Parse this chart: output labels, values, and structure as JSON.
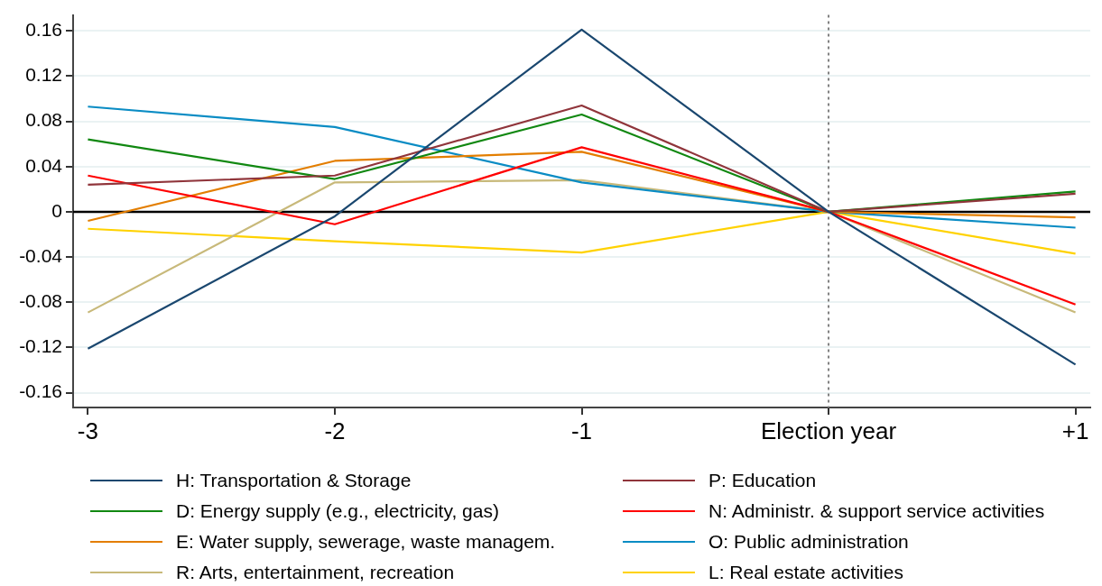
{
  "chart_data": {
    "type": "line",
    "x": [
      -3,
      -2,
      -1,
      0,
      1
    ],
    "xlim": [
      -3.06,
      1.06
    ],
    "xticks": [
      {
        "value": -3,
        "label": "-3"
      },
      {
        "value": -2,
        "label": "-2"
      },
      {
        "value": -1,
        "label": "-1"
      },
      {
        "value": 0,
        "label": "Election year"
      },
      {
        "value": 1,
        "label": "+1"
      }
    ],
    "ylim": [
      -0.173,
      0.174
    ],
    "yticks": [
      {
        "value": -0.16,
        "label": "-0.16"
      },
      {
        "value": -0.12,
        "label": "-0.12"
      },
      {
        "value": -0.08,
        "label": "-0.08"
      },
      {
        "value": -0.04,
        "label": "-0.04"
      },
      0,
      {
        "value": 0.04,
        "label": "0.04"
      },
      {
        "value": 0.08,
        "label": "0.08"
      },
      {
        "value": 0.12,
        "label": "0.12"
      },
      {
        "value": 0.16,
        "label": "0.16"
      }
    ],
    "grid": "y",
    "legend": "bottom",
    "ref_lines": [
      {
        "axis": "y",
        "value": 0,
        "color": "#000000",
        "line_style": "solid"
      },
      {
        "axis": "x",
        "value": 0,
        "color": "#808080",
        "line_style": "dotted"
      }
    ],
    "series": [
      {
        "name": "H: Transportation & Storage",
        "color": "#1a476f",
        "values": [
          -0.121,
          -0.004,
          0.161,
          0,
          -0.135
        ]
      },
      {
        "name": "P: Education",
        "color": "#90353b",
        "values": [
          0.024,
          0.032,
          0.094,
          0,
          0.016
        ]
      },
      {
        "name": "D: Energy supply (e.g., electricity, gas)",
        "color": "#118811",
        "values": [
          0.064,
          0.029,
          0.086,
          0,
          0.018
        ]
      },
      {
        "name": "N: Administr. & support service activities",
        "color": "#ff0000",
        "values": [
          0.032,
          -0.011,
          0.057,
          0,
          -0.082
        ]
      },
      {
        "name": "E: Water supply, sewerage, waste managem.",
        "color": "#e37e00",
        "values": [
          -0.008,
          0.045,
          0.053,
          0,
          -0.005
        ]
      },
      {
        "name": "O: Public administration",
        "color": "#0a8cc4",
        "values": [
          0.093,
          0.075,
          0.026,
          0,
          -0.014
        ]
      },
      {
        "name": "R: Arts, entertainment, recreation",
        "color": "#c8b97a",
        "values": [
          -0.089,
          0.026,
          0.028,
          0,
          -0.089
        ]
      },
      {
        "name": "L: Real estate activities",
        "color": "#ffd200",
        "values": [
          -0.015,
          -0.026,
          -0.036,
          0,
          -0.037
        ]
      }
    ]
  }
}
